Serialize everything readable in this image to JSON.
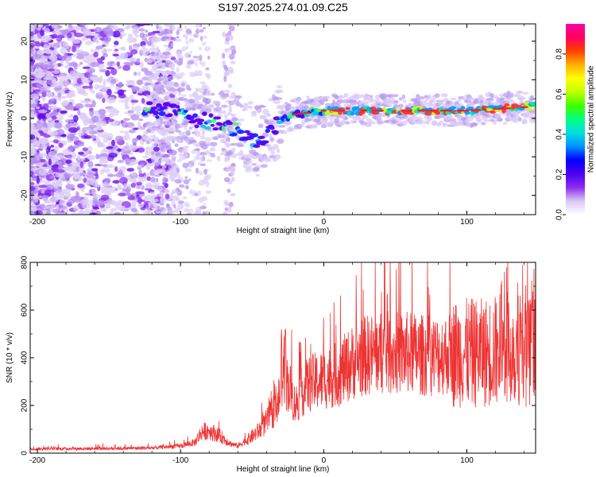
{
  "figure": {
    "title": "S197.2025.274.01.09.C25"
  },
  "chart_data": [
    {
      "type": "heatmap",
      "xlabel": "Height of straight line (km)",
      "ylabel": "Frequency (Hz)",
      "xlim": [
        -205,
        148
      ],
      "ylim": [
        -25,
        24.5
      ],
      "xticks": [
        -200,
        -100,
        0,
        100
      ],
      "yticks": [
        -20,
        -10,
        0,
        10,
        20
      ],
      "colorbar": {
        "label": "Normalized spectral amplitude",
        "range": [
          0,
          0.95
        ],
        "ticks": [
          0.0,
          0.2,
          0.4,
          0.6,
          0.8
        ],
        "colors": [
          "#ffffff",
          "#d8c8f4",
          "#8c2cf0",
          "#4a00f0",
          "#0000ff",
          "#0090ff",
          "#00e0e0",
          "#00ff80",
          "#40ff00",
          "#c0ff00",
          "#ffff00",
          "#ffb000",
          "#ff4000",
          "#ff0060",
          "#ff00a0"
        ]
      },
      "ridge": {
        "description_points_x": [
          -120,
          -100,
          -80,
          -60,
          -45,
          -37,
          -30,
          -20,
          0,
          50,
          100,
          145
        ],
        "frequency_hz": [
          2.5,
          1,
          -1,
          -3,
          -6,
          -4,
          0,
          1,
          2,
          2,
          2,
          3
        ]
      }
    },
    {
      "type": "line",
      "xlabel": "Height of straight line (km)",
      "ylabel": "SNR (10 * v/v)",
      "xlim": [
        -205,
        148
      ],
      "ylim": [
        0,
        800
      ],
      "xticks": [
        -200,
        -100,
        0,
        100
      ],
      "yticks": [
        0,
        200,
        400,
        600,
        800
      ],
      "series": [
        {
          "name": "SNR",
          "color": "#ee3333",
          "envelope_x": [
            -205,
            -140,
            -120,
            -100,
            -90,
            -85,
            -80,
            -72,
            -65,
            -60,
            -50,
            -45,
            -40,
            -35,
            -30,
            -28,
            -26,
            -24,
            -22,
            -20,
            -15,
            -10,
            -5,
            0,
            10,
            20,
            25,
            30,
            40,
            50,
            60,
            70,
            80,
            90,
            100,
            110,
            120,
            130,
            135,
            140,
            148
          ],
          "envelope_y": [
            18,
            20,
            22,
            30,
            45,
            90,
            95,
            70,
            40,
            30,
            70,
            95,
            130,
            180,
            250,
            320,
            300,
            280,
            240,
            200,
            260,
            290,
            300,
            310,
            330,
            380,
            400,
            410,
            420,
            420,
            420,
            410,
            410,
            420,
            420,
            420,
            430,
            440,
            440,
            430,
            420
          ]
        }
      ]
    }
  ]
}
